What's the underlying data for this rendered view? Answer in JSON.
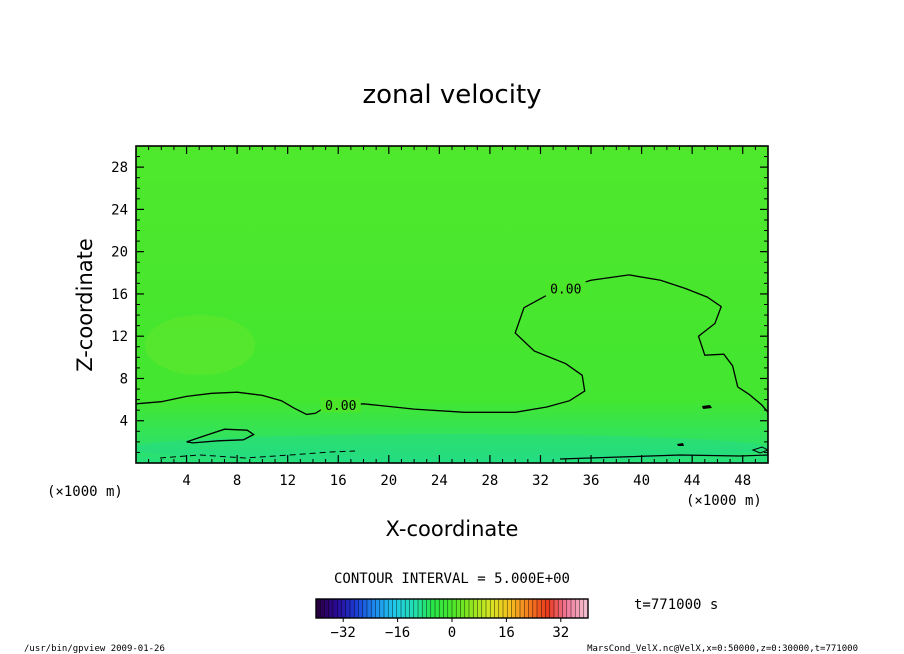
{
  "chart_data": {
    "type": "contour",
    "title": "zonal velocity",
    "xlabel": "X-coordinate",
    "ylabel": "Z-coordinate",
    "x_unit": "(×1000 m)",
    "y_unit": "(×1000 m)",
    "xlim": [
      0,
      50
    ],
    "ylim": [
      0,
      30
    ],
    "x_ticks": [
      4,
      8,
      12,
      16,
      20,
      24,
      28,
      32,
      36,
      40,
      44,
      48
    ],
    "y_ticks": [
      4,
      8,
      12,
      16,
      20,
      24,
      28
    ],
    "contour_interval": "CONTOUR INTERVAL = 5.000E+00",
    "contour_labels": [
      {
        "text": "0.00",
        "x": 34,
        "y": 16.5
      },
      {
        "text": "0.00",
        "x": 16.2,
        "y": 5.5
      }
    ],
    "zero_contour_main": [
      [
        0,
        5.6
      ],
      [
        2,
        5.8
      ],
      [
        4,
        6.3
      ],
      [
        6,
        6.6
      ],
      [
        8,
        6.7
      ],
      [
        10,
        6.4
      ],
      [
        11.5,
        5.9
      ],
      [
        12.5,
        5.2
      ],
      [
        13.5,
        4.6
      ],
      [
        14.2,
        4.7
      ],
      [
        15,
        5.3
      ],
      [
        18,
        5.6
      ],
      [
        22,
        5.1
      ],
      [
        26,
        4.8
      ],
      [
        30,
        4.8
      ],
      [
        32.5,
        5.3
      ],
      [
        34.3,
        5.9
      ],
      [
        35.5,
        6.8
      ],
      [
        35.3,
        8.3
      ],
      [
        34,
        9.4
      ],
      [
        31.5,
        10.6
      ],
      [
        30,
        12.3
      ],
      [
        30.7,
        14.7
      ],
      [
        33,
        16.2
      ],
      [
        36,
        17.3
      ],
      [
        39,
        17.8
      ],
      [
        41.5,
        17.3
      ],
      [
        43.5,
        16.5
      ],
      [
        45.2,
        15.7
      ],
      [
        46.3,
        14.8
      ],
      [
        45.8,
        13.2
      ],
      [
        44.5,
        12
      ],
      [
        45,
        10.2
      ],
      [
        46.5,
        10.3
      ],
      [
        47.2,
        9.2
      ],
      [
        47.6,
        7.2
      ],
      [
        48.5,
        6.5
      ],
      [
        49.5,
        5.5
      ],
      [
        50,
        4.8
      ]
    ],
    "zero_contour_small": [
      [
        4,
        2
      ],
      [
        5.5,
        2.6
      ],
      [
        7,
        3.2
      ],
      [
        8.8,
        3.1
      ],
      [
        9.3,
        2.7
      ],
      [
        8.5,
        2.2
      ],
      [
        6.5,
        2.1
      ],
      [
        4.5,
        1.9
      ],
      [
        4,
        2
      ]
    ],
    "colorbar": {
      "ticks": [
        -32,
        -16,
        0,
        16,
        32
      ],
      "range": [
        -40,
        40
      ],
      "colors": [
        "#2a0044",
        "#2a0a99",
        "#1b3fd6",
        "#1d8ff0",
        "#21c9e8",
        "#22e0b4",
        "#28e64a",
        "#49e62a",
        "#8fe61e",
        "#d6e624",
        "#f5c21e",
        "#f57d1e",
        "#e83a1e",
        "#f07a9a",
        "#f5bdd0"
      ]
    },
    "field_color": "#4be62a",
    "time_label": "t=771000 s",
    "footer_left": "/usr/bin/gpview   2009-01-26",
    "footer_right": "MarsCond_VelX.nc@VelX,x=0:50000,z=0:30000,t=771000"
  }
}
